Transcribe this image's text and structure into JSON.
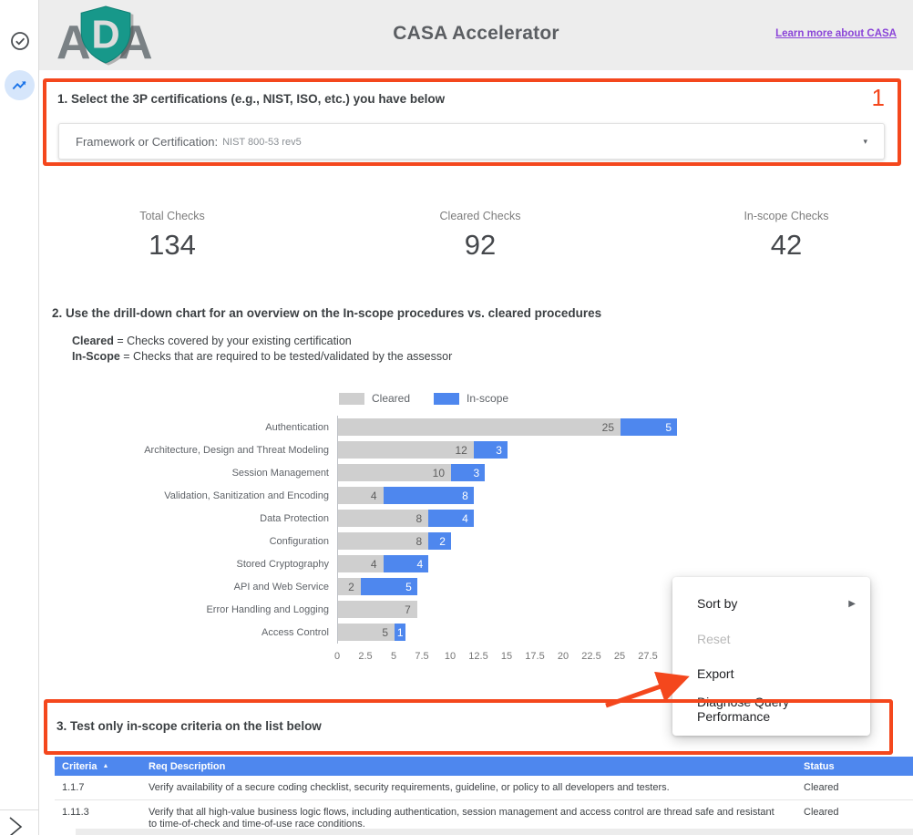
{
  "colors": {
    "annotation_red": "#f4471d",
    "bar_blue": "#4e87ee",
    "bar_gray": "#cfcfcf",
    "link_purple": "#8a44d8",
    "icon_blue": "#1a73e8",
    "table_header_blue": "#4e87ee",
    "header_band_gray": "#ededed"
  },
  "glyphs": {
    "caret_down": "▾",
    "submenu_arrow": "▶",
    "sort_asc": "▲"
  },
  "sidebar": {
    "icons": [
      "check-circle-icon",
      "trending-up-icon",
      "chevron-right-icon"
    ]
  },
  "header": {
    "logo_left": "A",
    "logo_shield_letter": "D",
    "logo_right": "A",
    "title": "CASA Accelerator",
    "link": "Learn more about CASA"
  },
  "section1": {
    "heading": "1. Select the 3P certifications (e.g., NIST, ISO, etc.) you have below",
    "annotation_number": "1",
    "dropdown_label": "Framework or Certification",
    "dropdown_separator": ":",
    "dropdown_value": "NIST 800-53 rev5"
  },
  "stats": [
    {
      "label": "Total Checks",
      "value": "134"
    },
    {
      "label": "Cleared Checks",
      "value": "92"
    },
    {
      "label": "In-scope Checks",
      "value": "42"
    }
  ],
  "section2": {
    "heading": "2. Use the drill-down chart for an overview on the In-scope procedures vs. cleared procedures",
    "notes": [
      {
        "term": "Cleared",
        "rest": " = Checks covered by your existing certification"
      },
      {
        "term": "In-Scope",
        "rest": " = Checks that are required to be tested/validated by the assessor"
      }
    ]
  },
  "chart_data": {
    "type": "bar",
    "orientation": "horizontal",
    "stacked": true,
    "legend_position": "top",
    "categories": [
      "Authentication",
      "Architecture, Design and Threat Modeling",
      "Session Management",
      "Validation, Sanitization and Encoding",
      "Data Protection",
      "Configuration",
      "Stored Cryptography",
      "API and Web Service",
      "Error Handling and Logging",
      "Access Control"
    ],
    "series": [
      {
        "name": "Cleared",
        "color": "#cfcfcf",
        "values": [
          25,
          12,
          10,
          4,
          8,
          8,
          4,
          2,
          7,
          5
        ]
      },
      {
        "name": "In-scope",
        "color": "#4e87ee",
        "values": [
          5,
          3,
          3,
          8,
          4,
          2,
          4,
          5,
          0,
          1
        ]
      }
    ],
    "x_ticks": [
      0,
      2.5,
      5,
      7.5,
      10,
      12.5,
      15,
      17.5,
      20,
      22.5,
      25,
      27.5
    ],
    "xlim": [
      0,
      30
    ],
    "grid": false
  },
  "context_menu": {
    "items": [
      {
        "label": "Sort by",
        "has_submenu": true,
        "disabled": false
      },
      {
        "label": "Reset",
        "has_submenu": false,
        "disabled": true
      },
      {
        "label": "Export",
        "has_submenu": false,
        "disabled": false
      },
      {
        "label": "Diagnose Query Performance",
        "has_submenu": false,
        "disabled": false
      }
    ]
  },
  "section3": {
    "heading": "3. Test only in-scope criteria on the list below"
  },
  "table": {
    "columns": [
      "Criteria",
      "Req Description",
      "Status"
    ],
    "sorted_column": "Criteria",
    "sort_direction": "ascending",
    "rows": [
      {
        "criteria": "1.1.7",
        "description": "Verify availability of a secure coding checklist, security requirements, guideline, or policy to all developers and testers.",
        "status": "Cleared"
      },
      {
        "criteria": "1.11.3",
        "description": "Verify that all high-value business logic flows, including authentication, session management and access control are thread safe and resistant to time-of-check and time-of-use race conditions.",
        "status": "Cleared"
      }
    ]
  }
}
